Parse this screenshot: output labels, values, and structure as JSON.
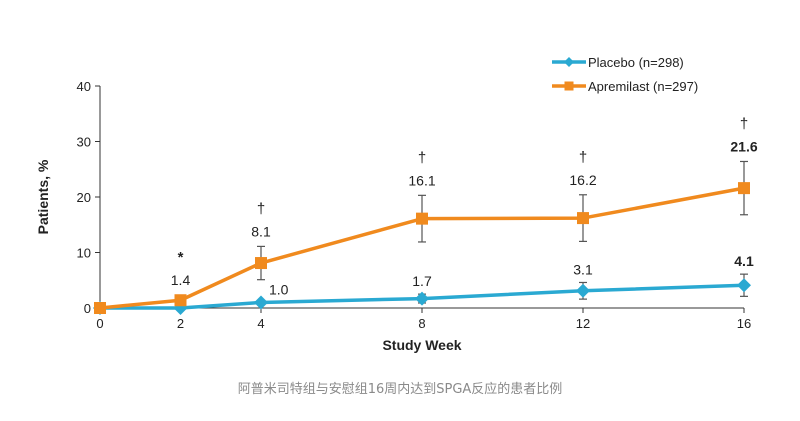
{
  "caption": "阿普米司特组与安慰组16周内达到SPGA反应的患者比例",
  "colors": {
    "placebo": "#2aa9d2",
    "apremilast": "#f08a1e",
    "axis": "#333333",
    "text": "#222222"
  },
  "chart_data": {
    "type": "line",
    "xlabel": "Study Week",
    "ylabel": "Patients, %",
    "xlim": [
      0,
      16
    ],
    "ylim": [
      0,
      40
    ],
    "x_ticks": [
      0,
      2,
      4,
      8,
      12,
      16
    ],
    "y_ticks": [
      0,
      10,
      20,
      30,
      40
    ],
    "legend_position": "top-right",
    "grid": false,
    "series": [
      {
        "name": "Placebo (n=298)",
        "marker": "diamond",
        "x": [
          0,
          2,
          4,
          8,
          12,
          16
        ],
        "y": [
          0,
          0,
          1.0,
          1.7,
          3.1,
          4.1
        ],
        "err_low": [
          0,
          0,
          0,
          0.8,
          1.5,
          2.0
        ],
        "err_high": [
          0,
          0,
          0,
          0.8,
          1.5,
          2.0
        ],
        "labels": [
          "",
          "",
          "1.0",
          "1.7",
          "3.1",
          "4.1"
        ]
      },
      {
        "name": "Apremilast (n=297)",
        "marker": "square",
        "x": [
          0,
          2,
          4,
          8,
          12,
          16
        ],
        "y": [
          0,
          1.4,
          8.1,
          16.1,
          16.2,
          21.6
        ],
        "err_low": [
          0,
          0.9,
          3.0,
          4.2,
          4.2,
          4.8
        ],
        "err_high": [
          0,
          0.9,
          3.0,
          4.2,
          4.2,
          4.8
        ],
        "labels": [
          "",
          "1.4",
          "8.1",
          "16.1",
          "16.2",
          "21.6"
        ]
      }
    ],
    "significance": [
      {
        "x": 2,
        "symbol": "*"
      },
      {
        "x": 4,
        "symbol": "†"
      },
      {
        "x": 8,
        "symbol": "†"
      },
      {
        "x": 12,
        "symbol": "†"
      },
      {
        "x": 16,
        "symbol": "†"
      }
    ]
  }
}
